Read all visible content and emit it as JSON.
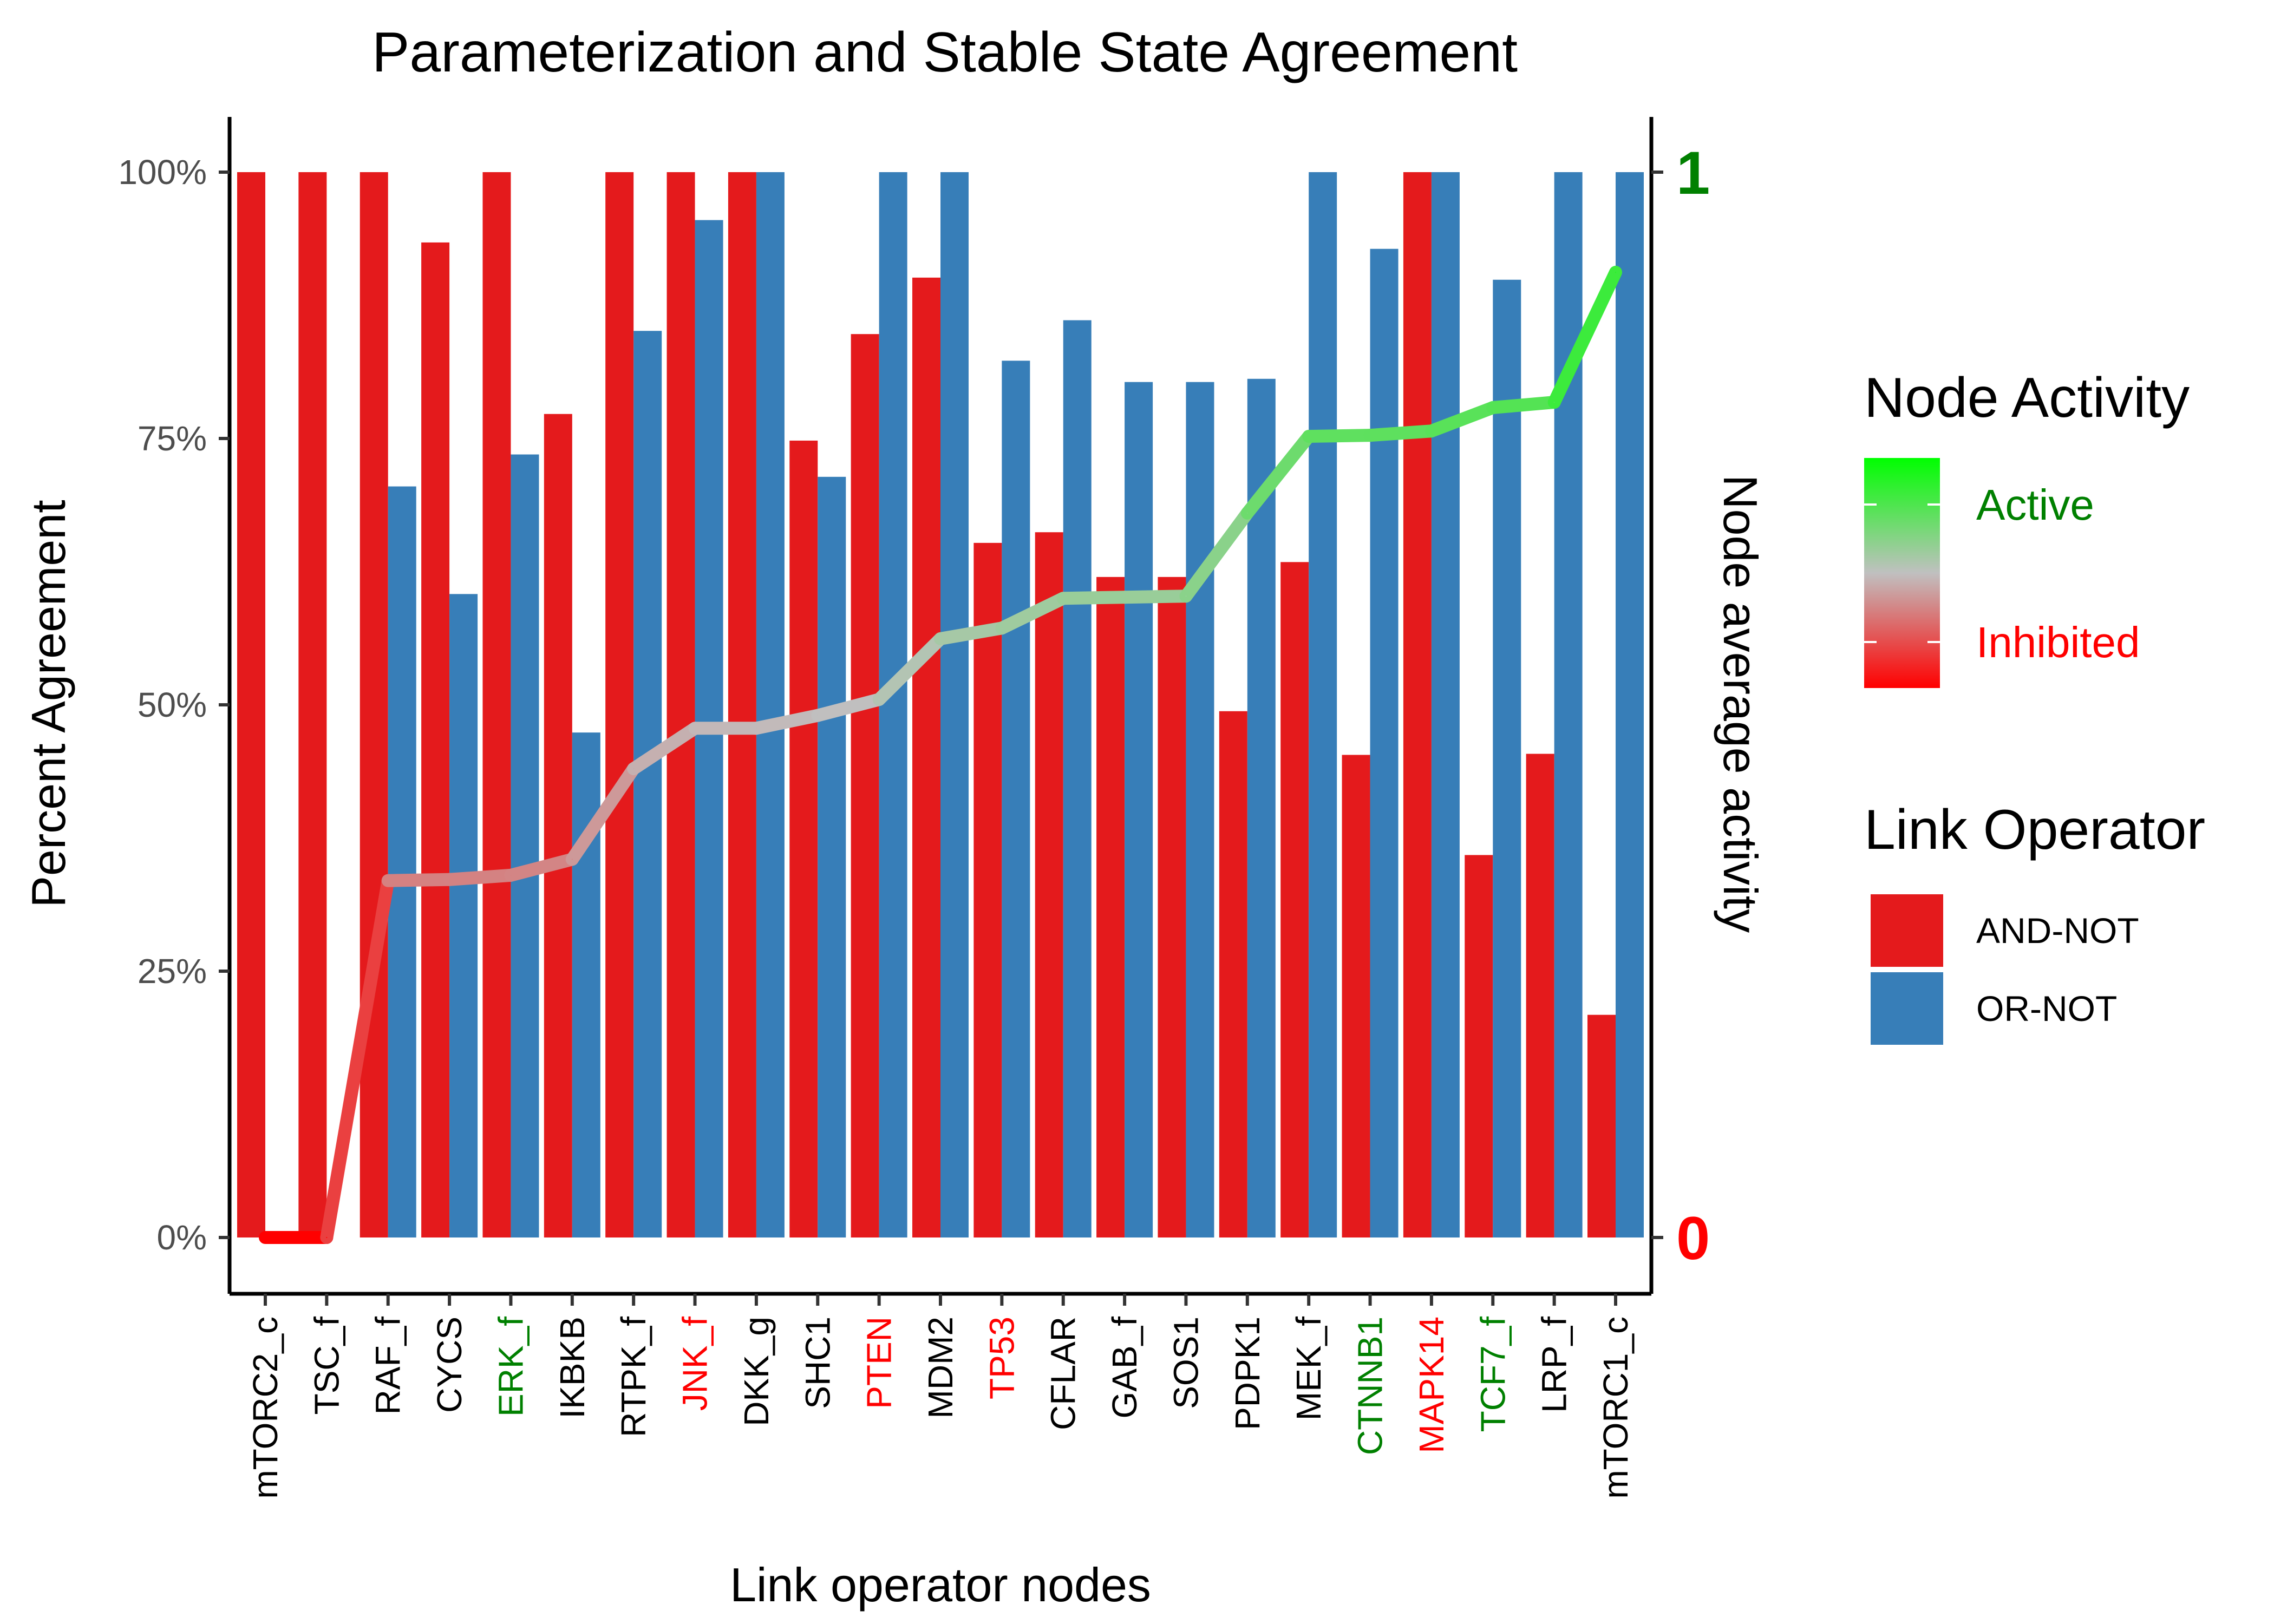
{
  "chart_data": {
    "type": "bar",
    "title": "Parameterization and Stable State Agreement",
    "xlabel": "Link operator nodes",
    "ylabel": "Percent Agreement",
    "y2label": "Node average activity",
    "ylim": [
      0,
      100
    ],
    "yticks": [
      0,
      25,
      50,
      75,
      100
    ],
    "ytick_labels": [
      "0%",
      "25%",
      "50%",
      "75%",
      "100%"
    ],
    "y2lim": [
      0,
      1
    ],
    "y2ticks": [
      0,
      1
    ],
    "y2tick_labels": [
      "0",
      "1"
    ],
    "y2tick_colors": [
      "#FF0000",
      "#008000"
    ],
    "grid": false,
    "legend_position": "right",
    "categories": [
      "mTORC2_c",
      "TSC_f",
      "RAF_f",
      "CYCS",
      "ERK_f",
      "IKBKB",
      "RTPK_f",
      "JNK_f",
      "DKK_g",
      "SHC1",
      "PTEN",
      "MDM2",
      "TP53",
      "CFLAR",
      "GAB_f",
      "SOS1",
      "PDPK1",
      "MEK_f",
      "CTNNB1",
      "MAPK14",
      "TCF7_f",
      "LRP_f",
      "mTORC1_c"
    ],
    "category_colors": [
      "#000000",
      "#000000",
      "#000000",
      "#000000",
      "#008000",
      "#000000",
      "#000000",
      "#FF0000",
      "#000000",
      "#000000",
      "#FF0000",
      "#000000",
      "#FF0000",
      "#000000",
      "#000000",
      "#000000",
      "#000000",
      "#000000",
      "#008000",
      "#FF0000",
      "#008000",
      "#000000",
      "#000000"
    ],
    "series": [
      {
        "name": "AND-NOT",
        "color": "#E41A1C",
        "values": [
          100,
          100,
          100,
          93.4,
          100,
          77.3,
          100,
          100,
          100,
          74.8,
          84.8,
          90.1,
          65.2,
          66.2,
          62.0,
          62.0,
          49.4,
          63.4,
          45.3,
          100,
          35.9,
          45.4,
          20.9
        ]
      },
      {
        "name": "OR-NOT",
        "color": "#377EB8",
        "values": [
          0,
          0,
          70.5,
          60.4,
          73.5,
          47.4,
          85.1,
          95.5,
          100,
          71.4,
          100,
          100,
          82.3,
          86.1,
          80.3,
          80.3,
          80.6,
          100,
          92.8,
          100,
          89.9,
          100,
          100
        ]
      }
    ],
    "activity": {
      "name": "Node average activity",
      "values": [
        0.0,
        0.0,
        0.335,
        0.336,
        0.34,
        0.355,
        0.44,
        0.478,
        0.478,
        0.49,
        0.505,
        0.562,
        0.572,
        0.6,
        0.601,
        0.602,
        0.68,
        0.752,
        0.753,
        0.757,
        0.779,
        0.784,
        0.906
      ]
    },
    "legends": {
      "activity": {
        "title": "Node Activity",
        "labels": [
          "Active",
          "Inhibited"
        ],
        "label_colors": [
          "#008000",
          "#FF0000"
        ],
        "gradient_colors": [
          "#00FF00",
          "#C0C0C0",
          "#FF0000"
        ]
      },
      "operator": {
        "title": "Link Operator",
        "labels": [
          "AND-NOT",
          "OR-NOT"
        ]
      }
    }
  }
}
